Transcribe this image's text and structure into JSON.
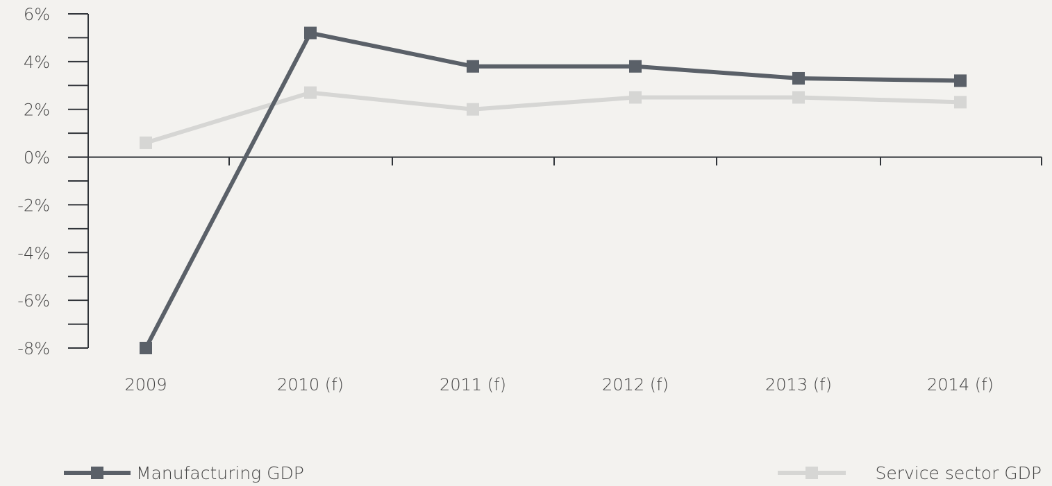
{
  "chart_data": {
    "type": "line",
    "categories": [
      "2009",
      "2010 (f)",
      "2011 (f)",
      "2012 (f)",
      "2013 (f)",
      "2014 (f)"
    ],
    "series": [
      {
        "name": "Manufacturing GDP",
        "values": [
          -8.0,
          5.2,
          3.8,
          3.8,
          3.3,
          3.2
        ],
        "color": "#5a6068"
      },
      {
        "name": "Service sector GDP",
        "values": [
          0.6,
          2.7,
          2.0,
          2.5,
          2.5,
          2.3
        ],
        "color": "#d6d6d4"
      }
    ],
    "yticks": [
      "6%",
      "4%",
      "2%",
      "0%",
      "-2%",
      "-4%",
      "-6%",
      "-8%"
    ],
    "ytick_values": [
      6,
      4,
      2,
      0,
      -2,
      -4,
      -6,
      -8
    ],
    "ylim": [
      -8,
      6
    ],
    "title": "",
    "xlabel": "",
    "ylabel": "",
    "grid": false,
    "legend_position": "bottom"
  },
  "colors": {
    "background": "#f3f2ef",
    "axis": "#2f3338",
    "text": "#444444"
  }
}
